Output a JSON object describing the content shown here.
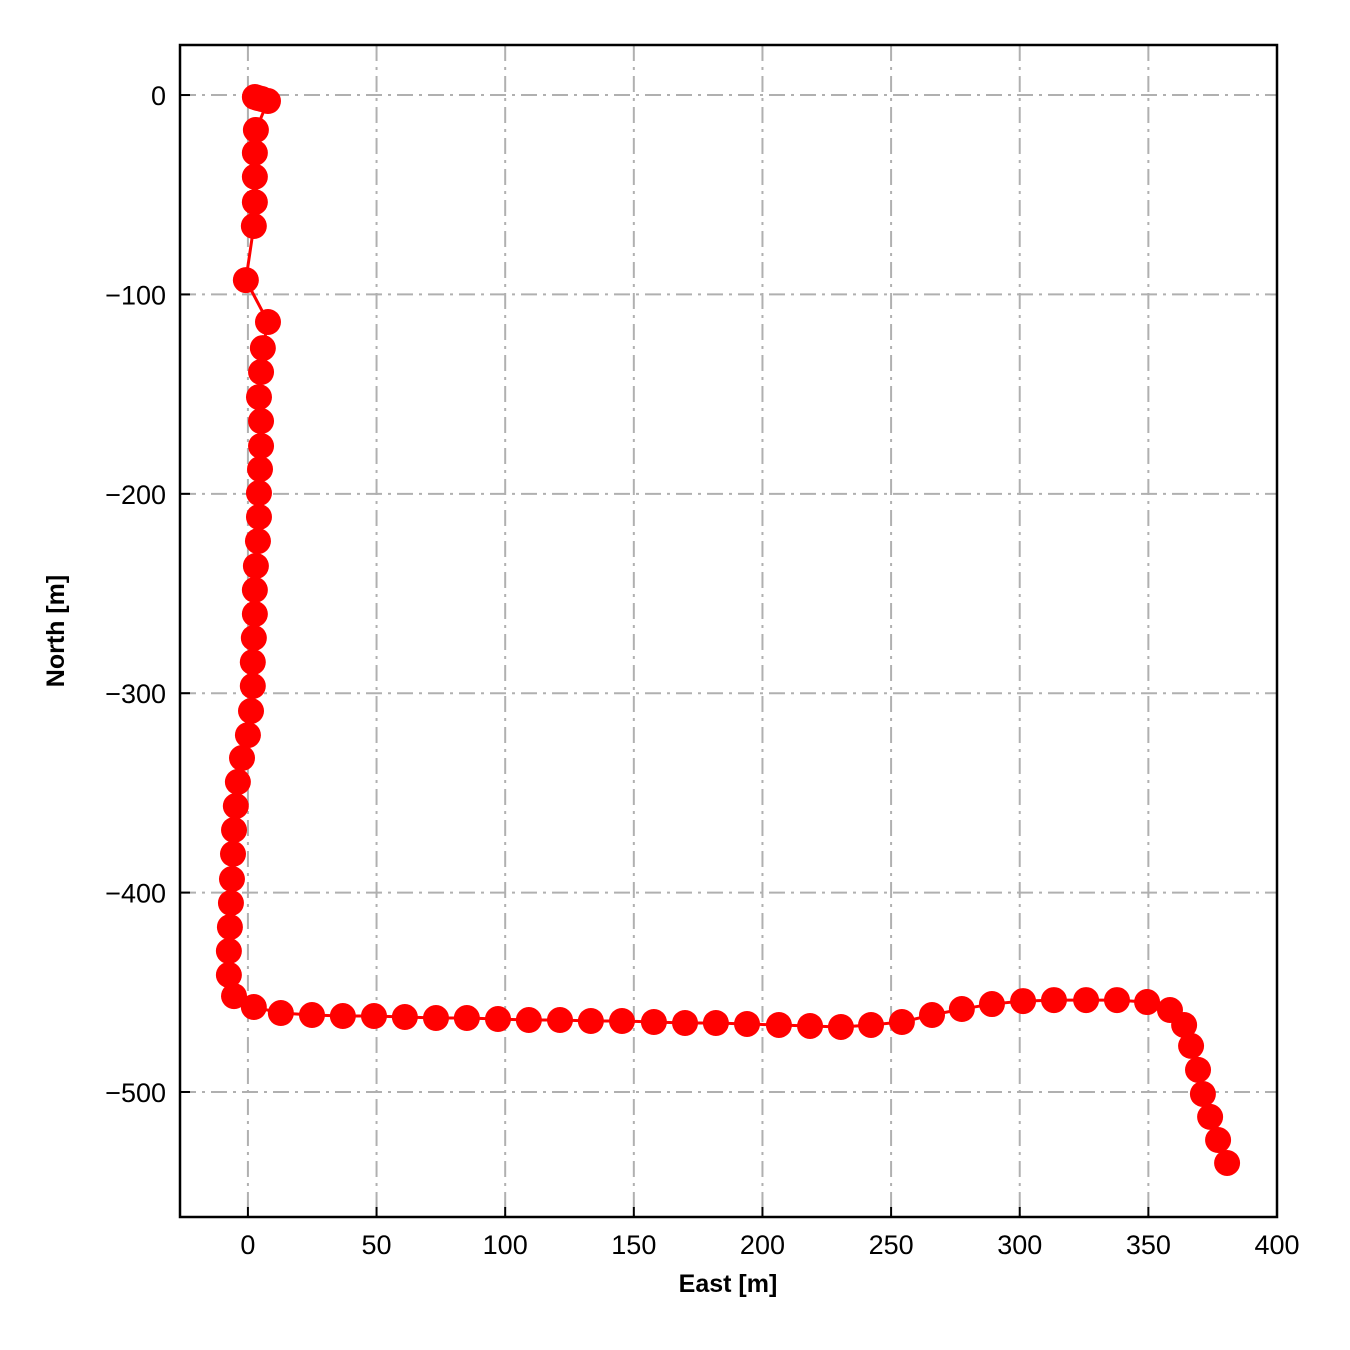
{
  "chart_data": {
    "type": "line",
    "xlabel": "East [m]",
    "ylabel": "North [m]",
    "color": "#ff0000",
    "grid": true,
    "xlim": [
      -26.4,
      400
    ],
    "ylim": [
      -562.7,
      25.1
    ],
    "xticks": [
      0,
      50,
      100,
      150,
      200,
      250,
      300,
      350,
      400
    ],
    "yticks": [
      {
        "value": 0,
        "label": "0"
      },
      {
        "value": -100,
        "label": "−100"
      },
      {
        "value": -200,
        "label": "−200"
      },
      {
        "value": -300,
        "label": "−300"
      },
      {
        "value": -400,
        "label": "−400"
      },
      {
        "value": -500,
        "label": "−500"
      }
    ],
    "x": [
      2.7,
      3.9,
      5.4,
      7.8,
      3.1,
      2.7,
      2.7,
      2.7,
      2.3,
      -0.8,
      7.8,
      5.8,
      5.1,
      4.3,
      5.1,
      5.1,
      4.7,
      4.3,
      4.3,
      3.9,
      3.1,
      2.7,
      2.7,
      2.3,
      1.9,
      1.9,
      1.2,
      0,
      -2.3,
      -3.9,
      -4.7,
      -5.4,
      -5.8,
      -6.2,
      -6.6,
      -7,
      -7.4,
      -7.4,
      -5.4,
      2.3,
      12.8,
      24.9,
      36.9,
      49,
      61,
      73.1,
      85.1,
      97.2,
      109.2,
      121.3,
      133.3,
      145.4,
      157.8,
      169.9,
      181.9,
      194,
      206.4,
      218.5,
      230.5,
      242.2,
      254.2,
      265.9,
      277.5,
      289.2,
      301.3,
      313.3,
      325.8,
      337.8,
      349.5,
      358.4,
      363.9,
      366.6,
      369.3,
      371.2,
      374,
      377.1,
      380.6
    ],
    "values": [
      -1,
      -1.5,
      -2,
      -3,
      -17.5,
      -29,
      -41,
      -53.7,
      -65.7,
      -92.8,
      -113.8,
      -126.9,
      -138.9,
      -151.5,
      -163.5,
      -176,
      -187.6,
      -199.6,
      -211.6,
      -223.7,
      -236.2,
      -248.2,
      -260.3,
      -272.3,
      -284.4,
      -296.4,
      -308.9,
      -321,
      -332.5,
      -344.5,
      -356.6,
      -368.6,
      -380.6,
      -393.2,
      -405.2,
      -417.3,
      -429.3,
      -441.3,
      -451.9,
      -457.4,
      -460.4,
      -461.4,
      -461.9,
      -461.9,
      -462.4,
      -462.9,
      -462.9,
      -463.4,
      -463.9,
      -463.9,
      -464.4,
      -464.4,
      -464.9,
      -465.4,
      -465.4,
      -465.9,
      -466.4,
      -466.9,
      -467.4,
      -466.4,
      -464.9,
      -461.4,
      -458.4,
      -455.9,
      -454.4,
      -453.9,
      -453.9,
      -453.9,
      -454.9,
      -458.9,
      -466.4,
      -476.9,
      -488.9,
      -501,
      -512.5,
      -524.1,
      -535.6
    ]
  }
}
